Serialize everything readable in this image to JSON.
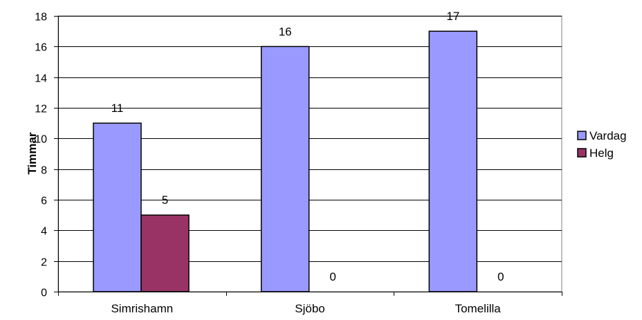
{
  "chart_data": {
    "type": "bar",
    "categories": [
      "Simrishamn",
      "Sjöbo",
      "Tomelilla"
    ],
    "series": [
      {
        "name": "Vardag",
        "values": [
          11,
          16,
          17
        ],
        "color": "#9999FF"
      },
      {
        "name": "Helg",
        "values": [
          5,
          0,
          0
        ],
        "color": "#993366"
      }
    ],
    "ylabel": "Timmar",
    "xlabel": "",
    "ylim": [
      0,
      18
    ],
    "yticks": [
      0,
      2,
      4,
      6,
      8,
      10,
      12,
      14,
      16,
      18
    ],
    "grid": true,
    "legend": "right",
    "data_labels": true
  }
}
